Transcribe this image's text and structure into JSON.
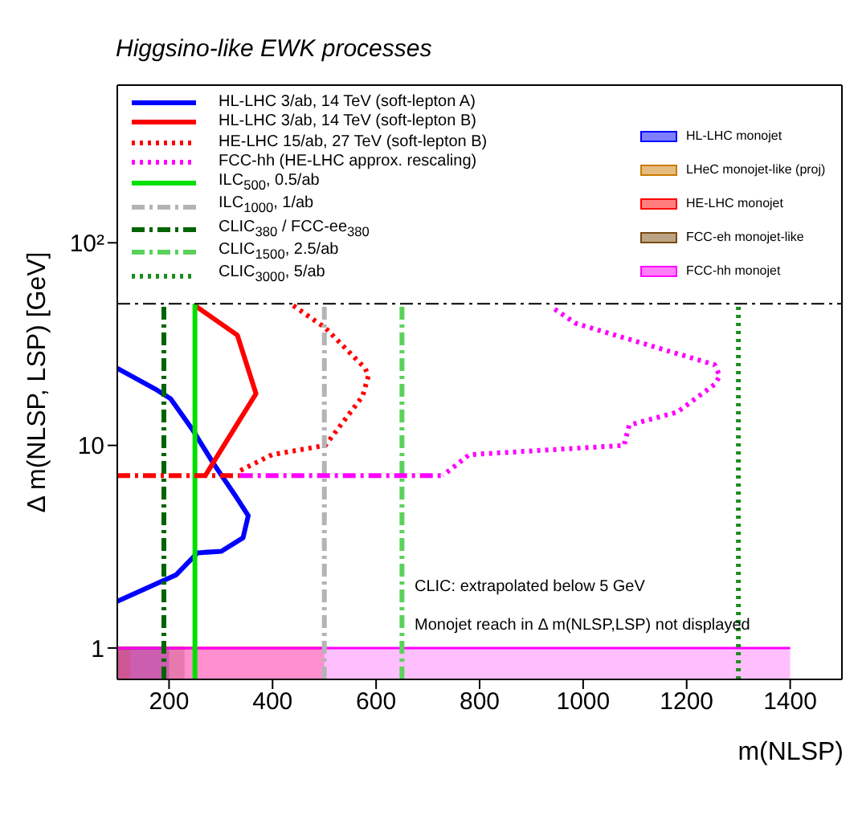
{
  "chart_data": {
    "type": "line",
    "title": "Higgsino-like EWK processes",
    "xlabel": "m(NLSP)",
    "ylabel": "Δ m(NLSP, LSP) [GeV]",
    "log": "y",
    "xlim": [
      100,
      1500
    ],
    "xticks": [
      200,
      400,
      600,
      800,
      1000,
      1200,
      1400
    ],
    "ylim": [
      0.7,
      600
    ],
    "yticks": [
      1,
      10,
      {
        "value": 100,
        "label": "10²"
      }
    ],
    "legend": "top left",
    "series": [
      {
        "name": "HL-LHC 3/ab, 14 TeV (soft-lepton A)",
        "color": "#0000ff",
        "line_style": "solid",
        "x": [
          100,
          173,
          203,
          245,
          285,
          327,
          353,
          343,
          301,
          255,
          214,
          100
        ],
        "values": [
          24,
          19,
          17,
          12,
          8.2,
          5.7,
          4.5,
          3.5,
          3,
          2.95,
          2.3,
          1.7
        ]
      },
      {
        "name": "HL-LHC 3/ab, 14 TeV (soft-lepton B)",
        "color": "#ff0000",
        "line_style": "solid",
        "x": [
          250,
          332,
          368,
          306,
          270
        ],
        "values": [
          49,
          35,
          18,
          10,
          7.1
        ]
      },
      {
        "name": "HE-LHC 15/ab, 27 TeV (soft-lepton B)",
        "color": "#ff0000",
        "line_style": "dotted",
        "x": [
          440,
          502,
          579,
          585,
          574,
          502,
          399,
          337
        ],
        "values": [
          49,
          38,
          24,
          22,
          17.5,
          10,
          9,
          7.5
        ]
      },
      {
        "name": "FCC-hh (HE-LHC approx. rescaling)",
        "color": "#ff00ff",
        "line_style": "dotted",
        "x": [
          945,
          986,
          1254,
          1264,
          1254,
          1182,
          1089,
          1079,
          780,
          729
        ],
        "values": [
          47,
          40,
          25,
          22,
          20,
          14.6,
          12.6,
          10,
          9,
          7.1
        ]
      },
      {
        "name": "ILC$_{500}$, 0.5/ab",
        "color": "#00e000",
        "line_style": "solid",
        "x": [
          250,
          250
        ],
        "values": [
          0.7,
          50
        ]
      },
      {
        "name": "ILC$_{1000}$, 1/ab",
        "color": "#b4b4b4",
        "line_style": "dashed",
        "x": [
          500,
          500
        ],
        "values": [
          0.7,
          50
        ]
      },
      {
        "name": "CLIC$_{380}$ / FCC-ee$_{380}$",
        "color": "#006400",
        "line_style": "dashed",
        "x": [
          190,
          190
        ],
        "values": [
          0.7,
          50
        ]
      },
      {
        "name": "CLIC$_{1500}$, 2.5/ab",
        "color": "#5ad25a",
        "line_style": "dashed",
        "x": [
          650,
          650
        ],
        "values": [
          0.7,
          50
        ]
      },
      {
        "name": "CLIC$_{3000}$, 5/ab",
        "color": "#1e8c1e",
        "line_style": "dotted",
        "x": [
          1300,
          1300
        ],
        "values": [
          0.7,
          50
        ]
      },
      {
        "color": "#ff0000",
        "line_style": "dashed",
        "x": [
          100,
          337
        ],
        "values": [
          7.1,
          7.1
        ]
      },
      {
        "color": "#ff00ff",
        "line_style": "dashed",
        "x": [
          337,
          729
        ],
        "values": [
          7.1,
          7.1
        ]
      },
      {
        "name": "HL-LHC monojet",
        "type": "area",
        "color": "#0000ff",
        "x": [
          100,
          200
        ],
        "values": [
          1,
          1
        ]
      },
      {
        "name": "LHeC monojet-like (proj)",
        "type": "area",
        "color": "#cc7a00",
        "x": [
          100,
          125
        ],
        "values": [
          1,
          1
        ]
      },
      {
        "name": "HE-LHC monojet",
        "type": "area",
        "color": "#ff0000",
        "x": [
          100,
          500
        ],
        "values": [
          1,
          1
        ]
      },
      {
        "name": "FCC-eh monojet-like",
        "type": "area",
        "color": "#7a4a10",
        "x": [
          100,
          230
        ],
        "values": [
          1,
          1
        ]
      },
      {
        "name": "FCC-hh monojet",
        "type": "area",
        "color": "#ff00ff",
        "x": [
          100,
          1400
        ],
        "values": [
          1,
          1
        ]
      }
    ],
    "ref_lines": [
      {
        "axis": "y",
        "value": 50,
        "color": "#000000",
        "line_style": "dashed"
      }
    ],
    "annotations": [
      "CLIC: extrapolated below 5 GeV",
      "Monojet reach in Δ m(NLSP,LSP) not displayed"
    ]
  }
}
